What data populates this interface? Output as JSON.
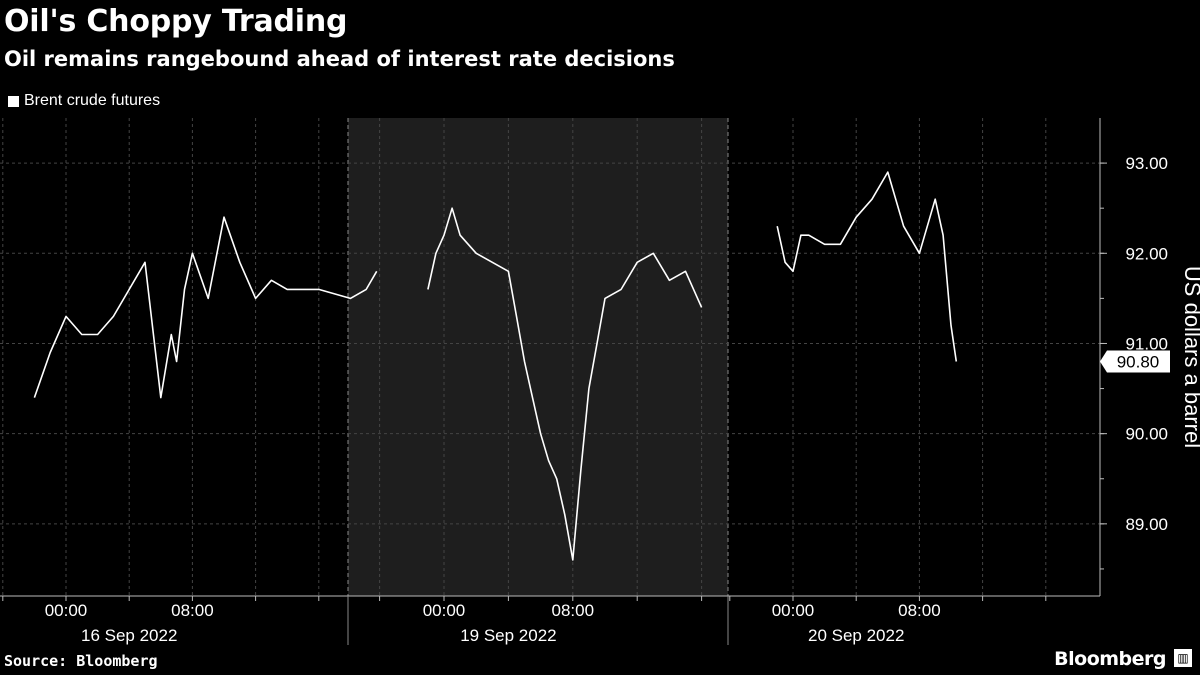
{
  "header": {
    "title": "Oil's Choppy Trading",
    "subtitle": "Oil remains rangebound ahead of interest rate decisions"
  },
  "legend": {
    "label": "Brent crude futures"
  },
  "footer": {
    "source": "Source: Bloomberg",
    "brand": "Bloomberg"
  },
  "chart_data": {
    "type": "line",
    "title": "Oil's Choppy Trading",
    "subtitle": "Oil remains rangebound ahead of interest rate decisions",
    "ylabel": "US dollars a barrel",
    "ylim": [
      88.2,
      93.5
    ],
    "yticks": [
      "93.00",
      "92.00",
      "91.00",
      "90.00",
      "89.00"
    ],
    "last_value_label": "90.80",
    "x_tick_labels": [
      "00:00",
      "08:00",
      "00:00",
      "08:00",
      "00:00",
      "08:00"
    ],
    "x_day_labels": [
      "16 Sep 2022",
      "19 Sep 2022",
      "20 Sep 2022"
    ],
    "shaded_session": "19 Sep 2022",
    "series": [
      {
        "name": "Brent crude futures",
        "sessions": [
          {
            "day": "16 Sep 2022",
            "x": [
              "-02:00",
              "-01:00",
              "00:00",
              "01:00",
              "02:00",
              "03:00",
              "04:00",
              "05:00",
              "06:00",
              "06:40",
              "07:00",
              "07:30",
              "08:00",
              "09:00",
              "10:00",
              "11:00",
              "12:00",
              "13:00",
              "14:00",
              "16:00",
              "18:00",
              "19:00",
              "19:40"
            ],
            "values": [
              90.4,
              90.9,
              91.3,
              91.1,
              91.1,
              91.3,
              91.6,
              91.9,
              90.4,
              91.1,
              90.8,
              91.6,
              92.0,
              91.5,
              92.4,
              91.9,
              91.5,
              91.7,
              91.6,
              91.6,
              91.5,
              91.6,
              91.8
            ]
          },
          {
            "day": "19 Sep 2022",
            "x": [
              "-01:00",
              "-00:30",
              "00:00",
              "00:30",
              "01:00",
              "02:00",
              "03:00",
              "04:00",
              "04:30",
              "05:00",
              "05:30",
              "06:00",
              "06:30",
              "07:00",
              "07:30",
              "08:00",
              "08:30",
              "09:00",
              "09:30",
              "10:00",
              "11:00",
              "12:00",
              "13:00",
              "14:00",
              "15:00",
              "16:00"
            ],
            "values": [
              91.6,
              92.0,
              92.2,
              92.5,
              92.2,
              92.0,
              91.9,
              91.8,
              91.3,
              90.8,
              90.4,
              90.0,
              89.7,
              89.5,
              89.1,
              88.6,
              89.6,
              90.5,
              91.0,
              91.5,
              91.6,
              91.9,
              92.0,
              91.7,
              91.8,
              91.4
            ]
          },
          {
            "day": "20 Sep 2022",
            "x": [
              "-01:00",
              "-00:30",
              "00:00",
              "00:30",
              "01:00",
              "02:00",
              "03:00",
              "04:00",
              "05:00",
              "06:00",
              "07:00",
              "08:00",
              "09:00",
              "09:30",
              "10:00",
              "10:20"
            ],
            "values": [
              92.3,
              91.9,
              91.8,
              92.2,
              92.2,
              92.1,
              92.1,
              92.4,
              92.6,
              92.9,
              92.3,
              92.0,
              92.6,
              92.2,
              91.2,
              90.8
            ]
          }
        ]
      }
    ]
  }
}
